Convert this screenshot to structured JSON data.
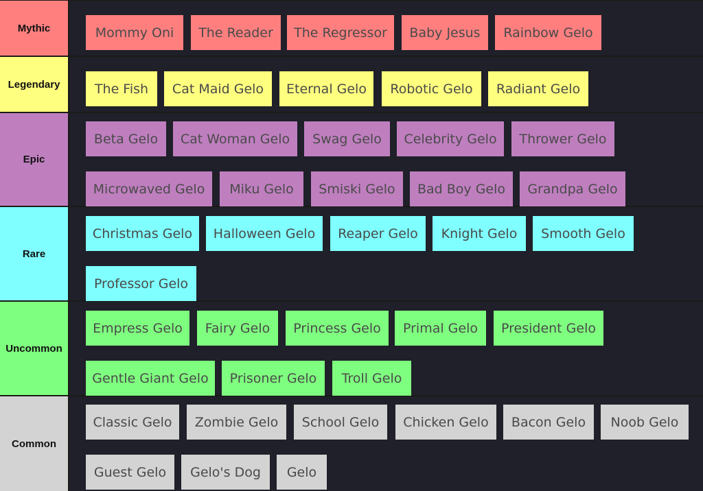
{
  "tiers": [
    {
      "label": "Mythic",
      "color": "#ff7f7f",
      "items": [
        "Mommy Oni",
        "The Reader",
        "The Regressor",
        "Baby Jesus",
        "Rainbow Gelo"
      ]
    },
    {
      "label": "Legendary",
      "color": "#ffff7f",
      "items": [
        "The Fish",
        "Cat Maid Gelo",
        "Eternal Gelo",
        "Robotic Gelo",
        "Radiant Gelo"
      ]
    },
    {
      "label": "Epic",
      "color": "#bf7fbf",
      "items": [
        "Beta Gelo",
        "Cat Woman Gelo",
        "Swag Gelo",
        "Celebrity Gelo",
        "Thrower Gelo",
        "Microwaved Gelo",
        "Miku Gelo",
        "Smiski Gelo",
        "Bad Boy Gelo",
        "Grandpa Gelo"
      ]
    },
    {
      "label": "Rare",
      "color": "#7fffff",
      "items": [
        "Christmas Gelo",
        "Halloween Gelo",
        "Reaper Gelo",
        "Knight Gelo",
        "Smooth Gelo",
        "Professor Gelo"
      ]
    },
    {
      "label": "Uncommon",
      "color": "#7fff7f",
      "items": [
        "Empress Gelo",
        "Fairy Gelo",
        "Princess Gelo",
        "Primal Gelo",
        "President Gelo",
        "Gentle Giant Gelo",
        "Prisoner Gelo",
        "Troll Gelo"
      ]
    },
    {
      "label": "Common",
      "color": "#d3d3d3",
      "items": [
        "Classic Gelo",
        "Zombie Gelo",
        "School Gelo",
        "Chicken Gelo",
        "Bacon Gelo",
        "Noob Gelo",
        "Guest Gelo",
        "Gelo's Dog",
        "Gelo"
      ]
    }
  ]
}
